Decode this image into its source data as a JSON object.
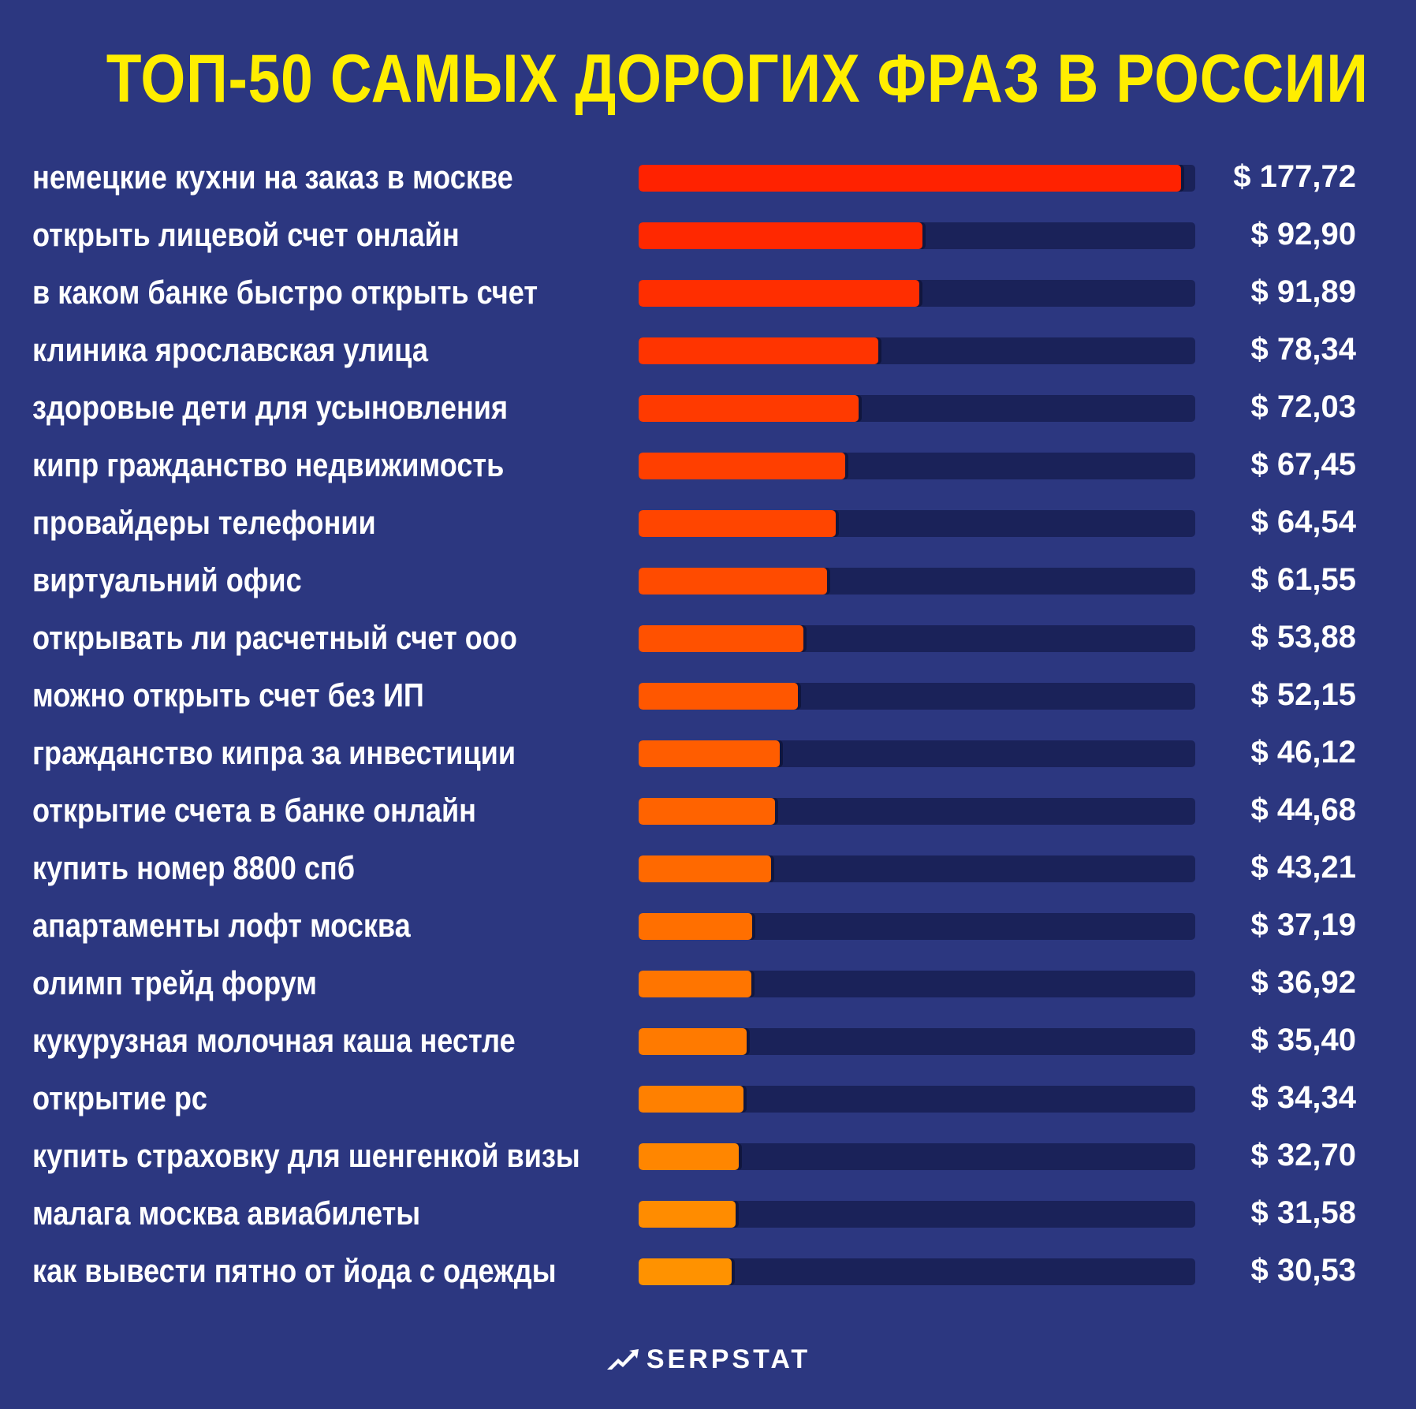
{
  "title": "ТОП-50 САМЫХ ДОРОГИХ ФРАЗ В РОССИИ",
  "brand": "SERPSTAT",
  "colors": {
    "background": "#2c3780",
    "title": "#ffee00",
    "track": "#1a2259",
    "bar_top": "#ff2200",
    "bar_bottom": "#ff9200"
  },
  "chart_data": {
    "type": "bar",
    "orientation": "horizontal",
    "title": "ТОП-50 САМЫХ ДОРОГИХ ФРАЗ В РОССИИ",
    "xlim": [
      0,
      182
    ],
    "grid": false,
    "categories": [
      "немецкие кухни на заказ в москве",
      "открыть лицевой счет онлайн",
      "в каком банке быстро открыть счет",
      "клиника ярославская улица",
      "здоровые дети для усыновления",
      "кипр гражданство недвижимость",
      "провайдеры телефонии",
      "виртуальний офис",
      "открывать ли расчетный счет ооо",
      "можно открыть счет без ИП",
      "гражданство кипра за инвестиции",
      "открытие счета в банке онлайн",
      "купить номер 8800 спб",
      "апартаменты лофт москва",
      "олимп трейд форум",
      "кукурузная молочная каша нестле",
      "открытие рс",
      "купить страховку для шенгенкой визы",
      "малага москва авиабилеты",
      "как вывести пятно от йода с одежды"
    ],
    "values": [
      177.72,
      92.9,
      91.89,
      78.34,
      72.03,
      67.45,
      64.54,
      61.55,
      53.88,
      52.15,
      46.12,
      44.68,
      43.21,
      37.19,
      36.92,
      35.4,
      34.34,
      32.7,
      31.58,
      30.53
    ],
    "value_labels": [
      "$ 177,72",
      "$ 92,90",
      "$ 91,89",
      "$ 78,34",
      "$ 72,03",
      "$ 67,45",
      "$ 64,54",
      "$ 61,55",
      "$ 53,88",
      "$ 52,15",
      "$ 46,12",
      "$ 44,68",
      "$ 43,21",
      "$ 37,19",
      "$ 36,92",
      "$ 35,40",
      "$ 34,34",
      "$ 32,70",
      "$ 31,58",
      "$ 30,53"
    ]
  }
}
